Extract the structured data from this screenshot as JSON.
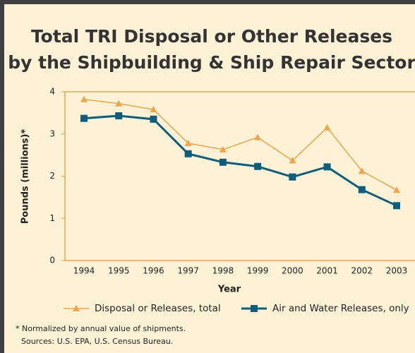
{
  "chart_data": {
    "type": "line",
    "title": [
      "Total TRI Disposal or Other Releases",
      "by the Shipbuilding & Ship Repair Sector"
    ],
    "xlabel": "Year",
    "ylabel": "Pounds (millions)*",
    "categories": [
      "1994",
      "1995",
      "1996",
      "1997",
      "1998",
      "1999",
      "2000",
      "2001",
      "2002",
      "2003"
    ],
    "series": [
      {
        "name": "Disposal or Releases, total",
        "color": "#f0a448",
        "marker": "triangle",
        "values": [
          3.82,
          3.72,
          3.58,
          2.78,
          2.63,
          2.92,
          2.37,
          3.15,
          2.12,
          1.67
        ]
      },
      {
        "name": "Air and Water Releases, only",
        "color": "#0c5f7c",
        "marker": "square",
        "values": [
          3.37,
          3.43,
          3.35,
          2.53,
          2.33,
          2.23,
          1.98,
          2.22,
          1.68,
          1.3
        ]
      }
    ],
    "ylim": [
      0,
      4
    ],
    "yticks": [
      0,
      1,
      2,
      3,
      4
    ],
    "grid": false,
    "notes": [
      "* Normalized by annual value of shipments.",
      "Sources: U.S. EPA, U.S. Census Bureau."
    ]
  }
}
